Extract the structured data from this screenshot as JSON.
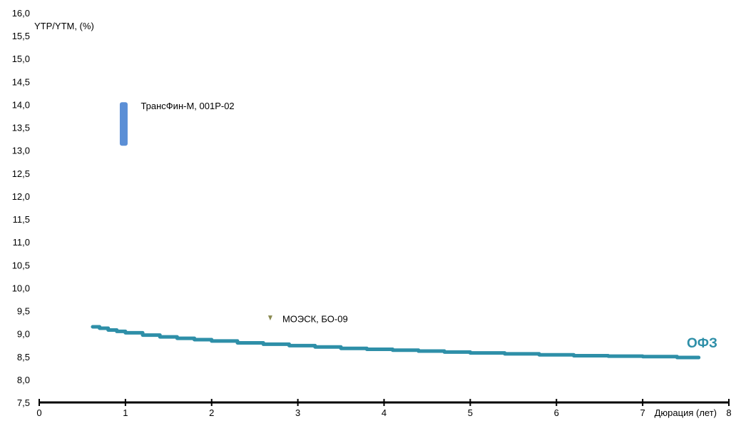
{
  "chart_data": {
    "type": "scatter",
    "ylabel": "YTP/YTM, (%)",
    "xlabel": "Дюрация (лет)",
    "xlim": [
      0,
      8
    ],
    "ylim": [
      7.5,
      16.0
    ],
    "x_ticks": [
      0,
      1,
      2,
      3,
      4,
      5,
      6,
      7,
      8
    ],
    "y_ticks": [
      "7,5",
      "8,0",
      "8,5",
      "9,0",
      "9,5",
      "10,0",
      "10,5",
      "11,0",
      "11,5",
      "12,0",
      "12,5",
      "13,0",
      "13,5",
      "14,0",
      "14,5",
      "15,0",
      "15,5",
      "16,0"
    ],
    "series": [
      {
        "name": "ОФЗ",
        "kind": "curve",
        "color": "#2e8fa8",
        "x": [
          0.62,
          0.7,
          0.8,
          0.9,
          1.0,
          1.2,
          1.4,
          1.6,
          1.8,
          2.0,
          2.3,
          2.6,
          2.9,
          3.2,
          3.5,
          3.8,
          4.1,
          4.4,
          4.7,
          5.0,
          5.4,
          5.8,
          6.2,
          6.6,
          7.0,
          7.4,
          7.65
        ],
        "y": [
          9.15,
          9.12,
          9.08,
          9.05,
          9.02,
          8.97,
          8.93,
          8.9,
          8.87,
          8.84,
          8.8,
          8.77,
          8.74,
          8.71,
          8.68,
          8.66,
          8.64,
          8.62,
          8.6,
          8.58,
          8.56,
          8.54,
          8.52,
          8.51,
          8.5,
          8.48,
          8.48
        ]
      },
      {
        "name": "ТрансФин-М, 001Р-02",
        "kind": "range",
        "color": "#5b8fd6",
        "x": 0.98,
        "y_low": 13.1,
        "y_high": 14.05
      },
      {
        "name": "МОЭСК, БО-09",
        "kind": "point",
        "color": "#8a8a50",
        "x": 2.68,
        "y": 9.35
      }
    ]
  }
}
